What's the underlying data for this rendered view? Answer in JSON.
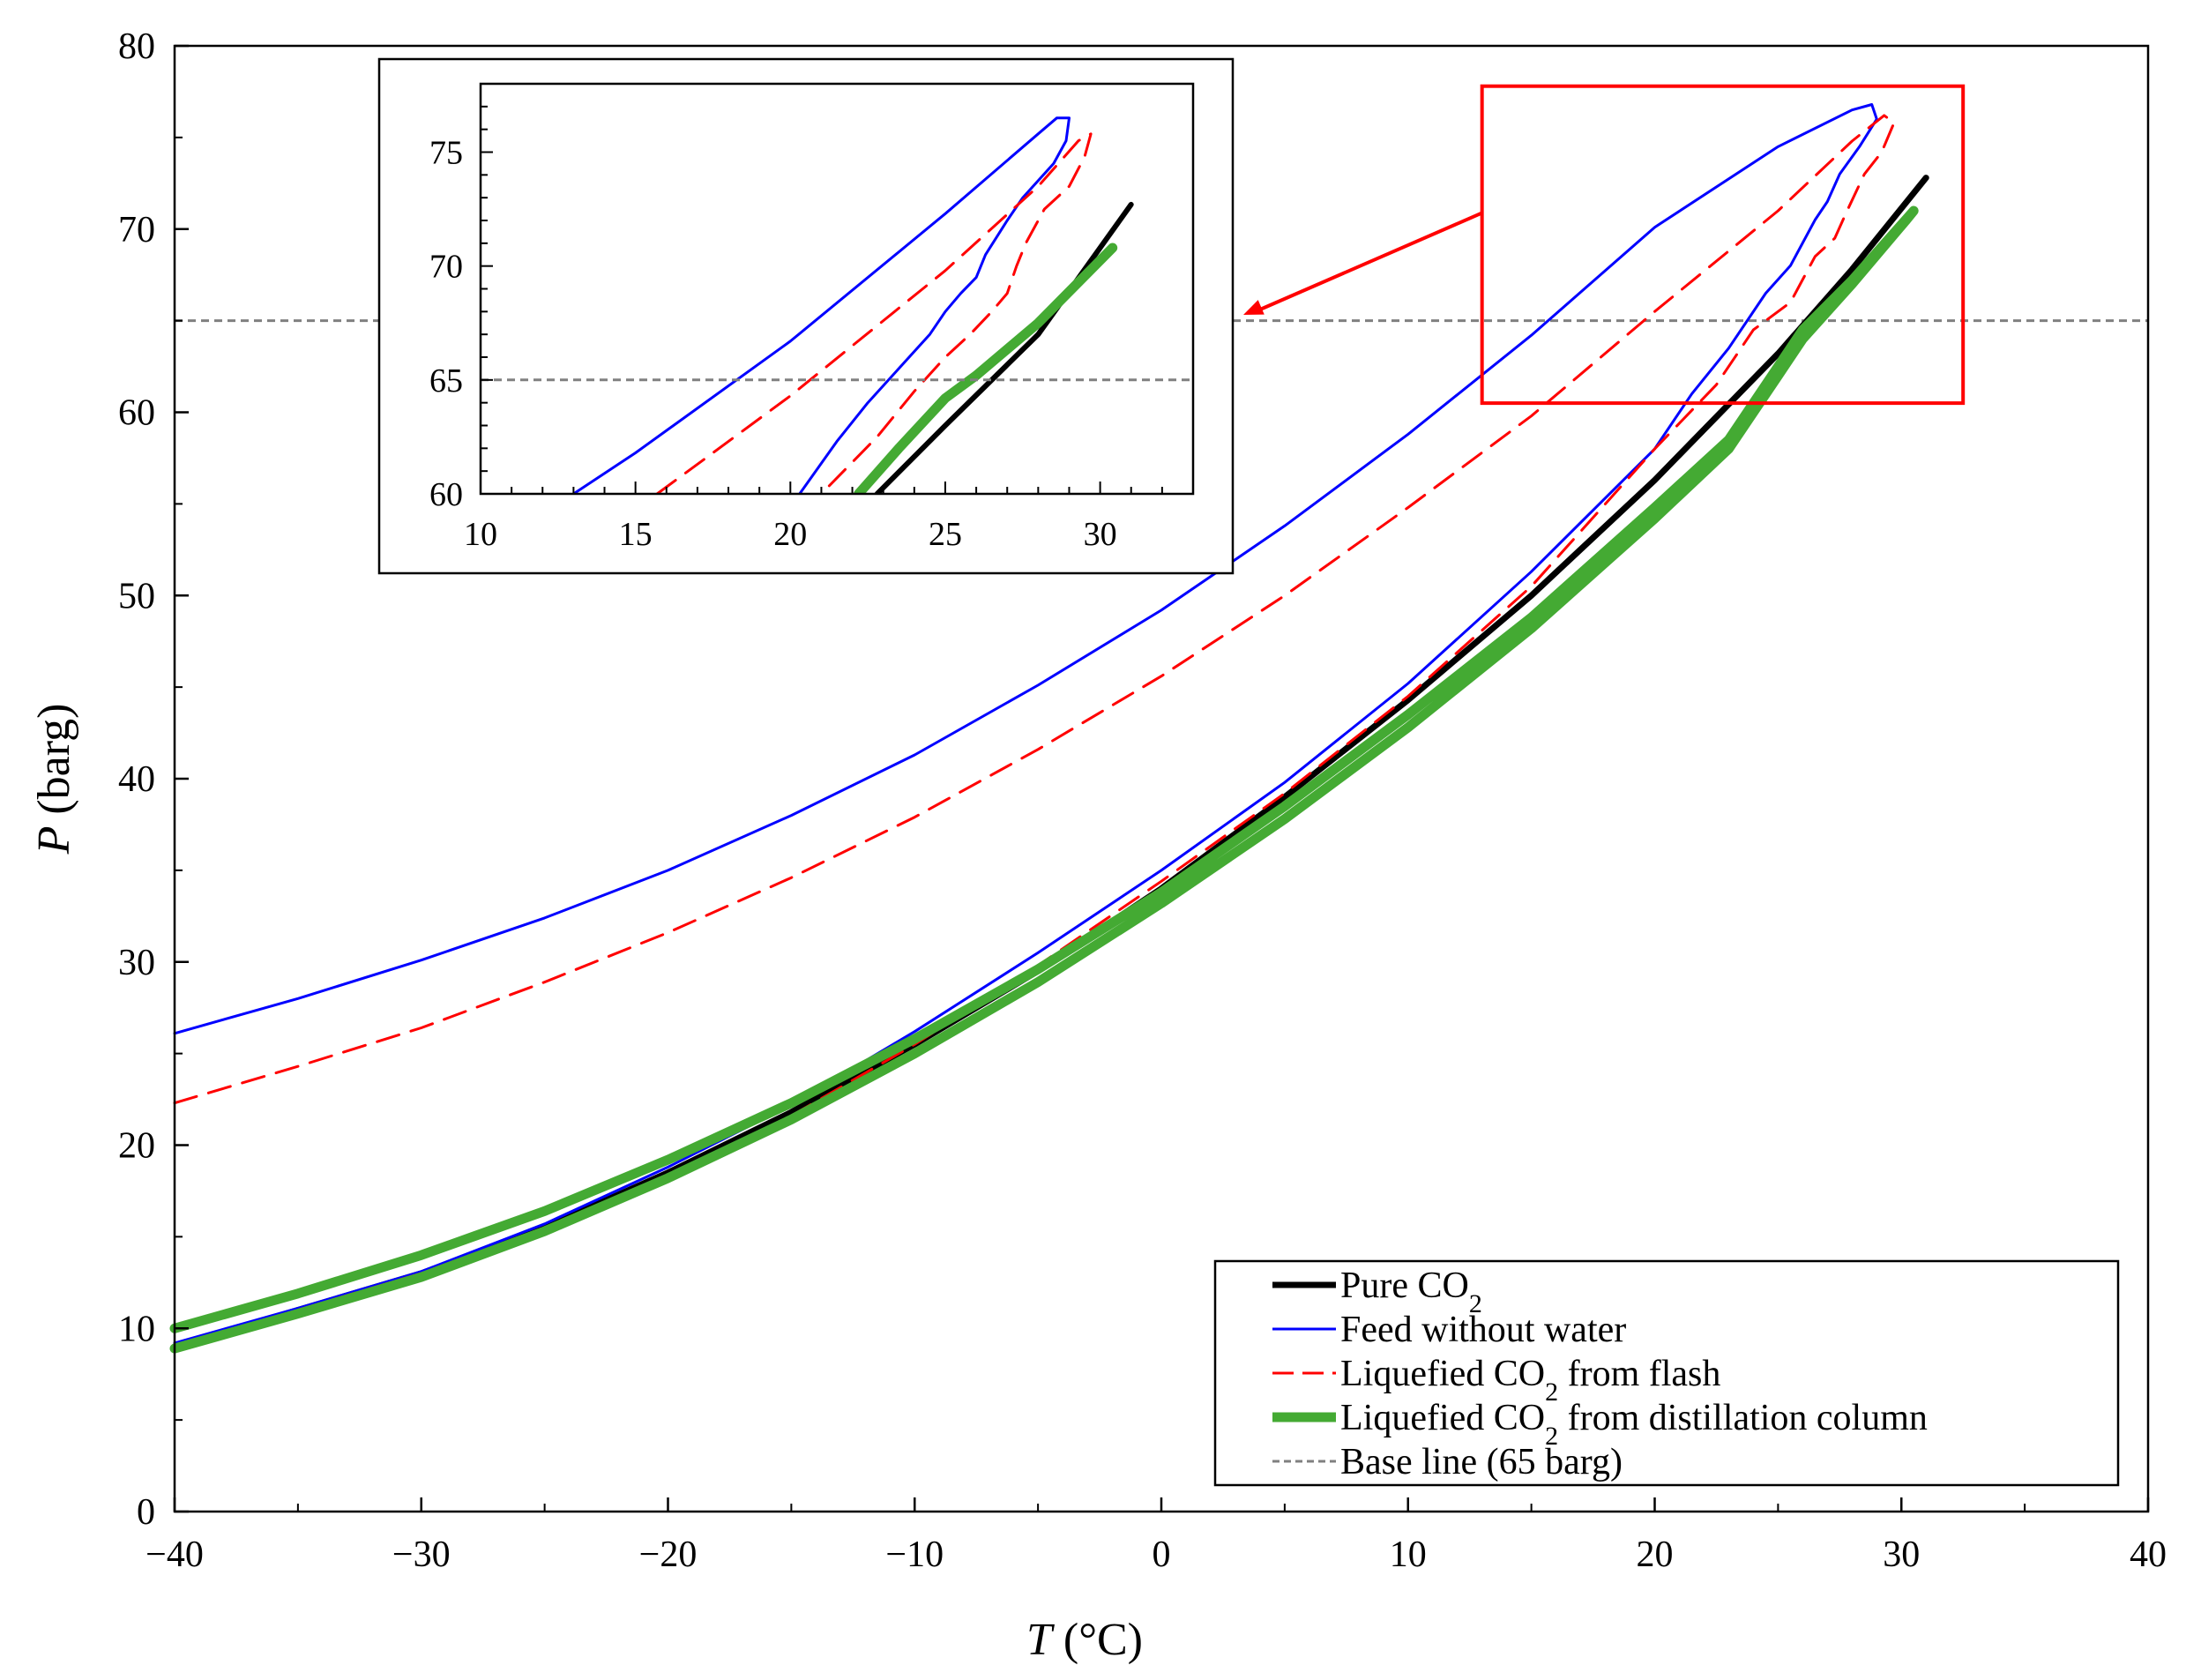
{
  "chart_data": [
    {
      "type": "line",
      "role": "main",
      "xlabel": "T (°C)",
      "xlabel_var": "T",
      "xlabel_unit": " (°C)",
      "ylabel": "P (barg)",
      "ylabel_var": "P",
      "ylabel_unit": " (barg)",
      "xlim": [
        -40,
        40
      ],
      "ylim": [
        0,
        80
      ],
      "xticks": [
        -40,
        -30,
        -20,
        -10,
        0,
        10,
        20,
        30,
        40
      ],
      "xtick_labels": [
        "−40",
        "−30",
        "−20",
        "−10",
        "0",
        "10",
        "20",
        "30",
        "40"
      ],
      "yticks": [
        0,
        10,
        20,
        30,
        40,
        50,
        60,
        70,
        80
      ],
      "ytick_labels": [
        "0",
        "10",
        "20",
        "30",
        "40",
        "50",
        "60",
        "70",
        "80"
      ],
      "grid": false,
      "legend_position": "bottom-right",
      "baseline": 65,
      "zoom_box": {
        "x": [
          13,
          32.5
        ],
        "y": [
          60.5,
          77.8
        ]
      },
      "series": [
        {
          "name": "Pure CO",
          "name_sub": "2",
          "name_suffix": "",
          "color": "#000000",
          "style": "solid",
          "width": 7,
          "points": [
            [
              -40,
              9.0
            ],
            [
              -35,
              11.0
            ],
            [
              -30,
              13.0
            ],
            [
              -25,
              15.5
            ],
            [
              -20,
              18.5
            ],
            [
              -15,
              21.8
            ],
            [
              -10,
              25.5
            ],
            [
              -5,
              29.5
            ],
            [
              0,
              34.0
            ],
            [
              5,
              39.0
            ],
            [
              10,
              44.3
            ],
            [
              15,
              50.0
            ],
            [
              20,
              56.3
            ],
            [
              25,
              63.2
            ],
            [
              28,
              67.8
            ],
            [
              31,
              72.8
            ]
          ]
        },
        {
          "name": "Feed without water",
          "name_sub": "",
          "name_suffix": "",
          "color": "#0000ff",
          "style": "solid",
          "width": 3,
          "points": [
            [
              -40,
              26.1
            ],
            [
              -35,
              28.0
            ],
            [
              -30,
              30.1
            ],
            [
              -25,
              32.4
            ],
            [
              -20,
              35.0
            ],
            [
              -15,
              38.0
            ],
            [
              -10,
              41.3
            ],
            [
              -5,
              45.1
            ],
            [
              0,
              49.2
            ],
            [
              5,
              53.8
            ],
            [
              10,
              58.8
            ],
            [
              15,
              64.2
            ],
            [
              20,
              70.1
            ],
            [
              25,
              74.5
            ],
            [
              28,
              76.5
            ],
            [
              28.8,
              76.8
            ],
            [
              29,
              76.0
            ],
            [
              28.3,
              74.5
            ],
            [
              27.5,
              73.0
            ],
            [
              27,
              71.5
            ],
            [
              26.5,
              70.5
            ],
            [
              25.5,
              68.0
            ],
            [
              24.5,
              66.5
            ],
            [
              23,
              63.5
            ],
            [
              21.5,
              61.0
            ],
            [
              20,
              58.0
            ],
            [
              15,
              51.3
            ],
            [
              10,
              45.2
            ],
            [
              5,
              39.8
            ],
            [
              0,
              35.0
            ],
            [
              -5,
              30.5
            ],
            [
              -10,
              26.2
            ],
            [
              -15,
              22.2
            ],
            [
              -20,
              18.8
            ],
            [
              -25,
              15.7
            ],
            [
              -30,
              13.1
            ],
            [
              -35,
              11.1
            ],
            [
              -40,
              9.2
            ]
          ]
        },
        {
          "name": "Liquefied CO",
          "name_sub": "2",
          "name_suffix": " from flash",
          "color": "#ff0000",
          "style": "dashed",
          "width": 3,
          "points": [
            [
              -40,
              22.3
            ],
            [
              -35,
              24.3
            ],
            [
              -30,
              26.4
            ],
            [
              -25,
              28.9
            ],
            [
              -20,
              31.6
            ],
            [
              -15,
              34.6
            ],
            [
              -10,
              37.9
            ],
            [
              -5,
              41.6
            ],
            [
              0,
              45.6
            ],
            [
              5,
              50.0
            ],
            [
              10,
              54.8
            ],
            [
              15,
              59.8
            ],
            [
              20,
              65.5
            ],
            [
              25,
              71.0
            ],
            [
              28,
              74.8
            ],
            [
              29.3,
              76.2
            ],
            [
              29.7,
              75.8
            ],
            [
              29.2,
              74.2
            ],
            [
              28.5,
              73.0
            ],
            [
              27.8,
              71.0
            ],
            [
              27.3,
              69.5
            ],
            [
              26.5,
              68.5
            ],
            [
              25.5,
              66.0
            ],
            [
              24,
              64.5
            ],
            [
              22.5,
              61.5
            ],
            [
              20,
              58.0
            ],
            [
              15,
              50.5
            ],
            [
              10,
              44.5
            ],
            [
              5,
              39.2
            ],
            [
              0,
              34.4
            ],
            [
              -5,
              29.8
            ],
            [
              -10,
              25.5
            ],
            [
              -15,
              21.6
            ],
            [
              -20,
              18.3
            ],
            [
              -25,
              15.5
            ],
            [
              -30,
              13.0
            ],
            [
              -35,
              11.0
            ],
            [
              -40,
              9.0
            ]
          ]
        },
        {
          "name": "Liquefied CO",
          "name_sub": "2",
          "name_suffix": " from distillation column",
          "color": "#44aa33",
          "style": "solid",
          "width": 11,
          "points": [
            [
              -40,
              10.0
            ],
            [
              -35,
              11.9
            ],
            [
              -30,
              14.0
            ],
            [
              -25,
              16.4
            ],
            [
              -20,
              19.2
            ],
            [
              -15,
              22.3
            ],
            [
              -10,
              25.8
            ],
            [
              -5,
              29.6
            ],
            [
              0,
              33.8
            ],
            [
              5,
              38.5
            ],
            [
              10,
              43.5
            ],
            [
              15,
              48.8
            ],
            [
              20,
              54.8
            ],
            [
              23,
              58.5
            ],
            [
              25,
              62.5
            ],
            [
              26,
              64.5
            ],
            [
              28,
              67.2
            ],
            [
              30.5,
              71.0
            ],
            [
              30.2,
              70.5
            ],
            [
              28,
              67.0
            ],
            [
              26,
              64.0
            ],
            [
              25,
              62.0
            ],
            [
              23,
              58.0
            ],
            [
              20,
              54.2
            ],
            [
              15,
              48.2
            ],
            [
              10,
              42.8
            ],
            [
              5,
              37.8
            ],
            [
              0,
              33.2
            ],
            [
              -5,
              28.9
            ],
            [
              -10,
              25.0
            ],
            [
              -15,
              21.4
            ],
            [
              -20,
              18.2
            ],
            [
              -25,
              15.3
            ],
            [
              -30,
              12.8
            ],
            [
              -35,
              10.8
            ],
            [
              -40,
              8.9
            ]
          ]
        },
        {
          "name": "Base line (65 barg)",
          "name_sub": "",
          "name_suffix": "",
          "color": "#808080",
          "style": "dotted",
          "width": 3,
          "points": [
            [
              -40,
              65
            ],
            [
              40,
              65
            ]
          ]
        }
      ]
    },
    {
      "type": "line",
      "role": "inset",
      "xlim": [
        10,
        33
      ],
      "ylim": [
        60,
        78
      ],
      "xticks": [
        10,
        15,
        20,
        25,
        30
      ],
      "xtick_labels": [
        "10",
        "15",
        "20",
        "25",
        "30"
      ],
      "yticks": [
        60,
        65,
        70,
        75
      ],
      "ytick_labels": [
        "60",
        "65",
        "70",
        "75"
      ],
      "grid": false,
      "series": [
        {
          "color": "#000000",
          "style": "solid",
          "width": 6,
          "points": [
            [
              22.8,
              60
            ],
            [
              25,
              63.0
            ],
            [
              28,
              67.0
            ],
            [
              31,
              72.7
            ]
          ]
        },
        {
          "color": "#0000ff",
          "style": "solid",
          "width": 3,
          "points": [
            [
              13.0,
              60
            ],
            [
              15,
              61.8
            ],
            [
              20,
              66.7
            ],
            [
              25,
              72.3
            ],
            [
              28,
              75.8
            ],
            [
              28.6,
              76.5
            ],
            [
              29.0,
              76.5
            ],
            [
              28.9,
              75.5
            ],
            [
              28.5,
              74.5
            ],
            [
              27.5,
              73.0
            ],
            [
              27,
              72.0
            ],
            [
              26.3,
              70.5
            ],
            [
              26,
              69.5
            ],
            [
              25.5,
              68.8
            ],
            [
              25,
              68.0
            ],
            [
              24.5,
              67.0
            ],
            [
              23.5,
              65.5
            ],
            [
              22.5,
              64.0
            ],
            [
              21.5,
              62.3
            ],
            [
              20.3,
              60
            ]
          ]
        },
        {
          "color": "#ff0000",
          "style": "dashed",
          "width": 3,
          "points": [
            [
              15.7,
              60
            ],
            [
              20,
              64.3
            ],
            [
              25,
              69.8
            ],
            [
              28,
              73.5
            ],
            [
              29.3,
              75.5
            ],
            [
              29.7,
              75.8
            ],
            [
              29.5,
              74.8
            ],
            [
              29.0,
              73.5
            ],
            [
              28.2,
              72.5
            ],
            [
              27.6,
              71.0
            ],
            [
              27.3,
              70.0
            ],
            [
              27.0,
              68.8
            ],
            [
              26.5,
              68.0
            ],
            [
              25.8,
              67.0
            ],
            [
              25.0,
              66.0
            ],
            [
              24.0,
              64.5
            ],
            [
              22.8,
              62.5
            ],
            [
              21.0,
              60
            ]
          ]
        },
        {
          "color": "#44aa33",
          "style": "solid",
          "width": 11,
          "points": [
            [
              22.2,
              60
            ],
            [
              23.5,
              62.0
            ],
            [
              25,
              64.2
            ],
            [
              26,
              65.2
            ],
            [
              28,
              67.5
            ],
            [
              30.4,
              70.8
            ]
          ]
        },
        {
          "color": "#808080",
          "style": "dotted",
          "width": 3,
          "points": [
            [
              10,
              65
            ],
            [
              33,
              65
            ]
          ]
        }
      ]
    }
  ]
}
